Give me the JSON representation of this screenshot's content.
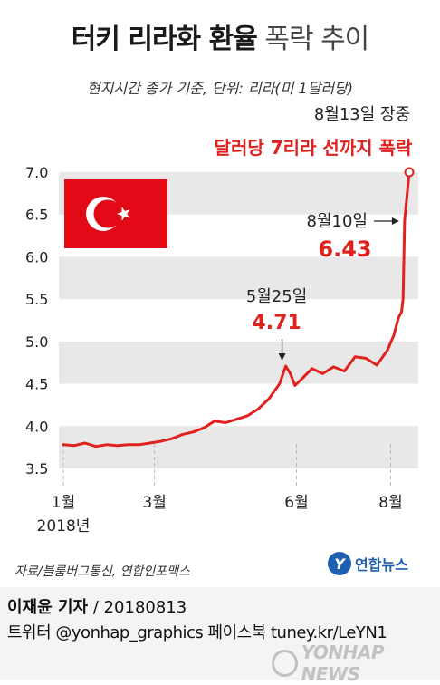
{
  "title_bold": "터키 리라화 환율",
  "title_light": "폭락 추이",
  "subtitle": "현지시간 종가 기준, 단위: 리라(미 1달러당)",
  "source": "자료/블룸버그통신, 연합인포맥스",
  "logo": {
    "mark": "Y",
    "text": "연합뉴스"
  },
  "footer": {
    "reporter": "이재윤 기자",
    "date": " / 20180813",
    "links": "트위터 @yonhap_graphics  페이스북 tuney.kr/LeYN1"
  },
  "watermark": {
    "text": "YONHAP NEWS"
  },
  "flag": {
    "name": "turkish-flag",
    "color": "#e30a17"
  },
  "colors": {
    "accent": "#e0221f",
    "line": "#e0221f",
    "band": "#e8e8e8"
  },
  "chart_data": {
    "type": "line",
    "ylim": [
      3.5,
      7.0
    ],
    "yticks": [
      "7.0",
      "6.5",
      "6.0",
      "5.5",
      "5.0",
      "4.5",
      "4.0",
      "3.5"
    ],
    "xtick_labels": [
      "1월",
      "3월",
      "6월",
      "8월"
    ],
    "year_label": "2018년",
    "x_domain": [
      "2018-01-01",
      "2018-08-13"
    ],
    "grid": "alternating horizontal bands",
    "series": [
      {
        "x": [
          "2018-01-01",
          "2018-01-08",
          "2018-01-15",
          "2018-01-22",
          "2018-01-29",
          "2018-02-05",
          "2018-02-12",
          "2018-02-19",
          "2018-02-26",
          "2018-03-05",
          "2018-03-12",
          "2018-03-19",
          "2018-03-26",
          "2018-04-02",
          "2018-04-09",
          "2018-04-16",
          "2018-04-23",
          "2018-04-30",
          "2018-05-07",
          "2018-05-14",
          "2018-05-21",
          "2018-05-25",
          "2018-05-28",
          "2018-05-31",
          "2018-06-04",
          "2018-06-11",
          "2018-06-18",
          "2018-06-25",
          "2018-07-02",
          "2018-07-09",
          "2018-07-16",
          "2018-07-23",
          "2018-07-30",
          "2018-08-03",
          "2018-08-06",
          "2018-08-08",
          "2018-08-09",
          "2018-08-10",
          "2018-08-13"
        ],
        "y": [
          3.78,
          3.77,
          3.8,
          3.76,
          3.78,
          3.77,
          3.78,
          3.78,
          3.8,
          3.82,
          3.85,
          3.9,
          3.93,
          3.98,
          4.06,
          4.04,
          4.08,
          4.12,
          4.2,
          4.32,
          4.5,
          4.71,
          4.62,
          4.48,
          4.55,
          4.68,
          4.62,
          4.7,
          4.65,
          4.82,
          4.8,
          4.72,
          4.9,
          5.07,
          5.28,
          5.35,
          5.5,
          6.43,
          7.0
        ]
      }
    ],
    "annotations": [
      {
        "x": "2018-05-25",
        "y": 4.71,
        "date_label": "5월25일",
        "value_label": "4.71"
      },
      {
        "x": "2018-08-10",
        "y": 6.43,
        "date_label": "8월10일",
        "value_label": "6.43"
      },
      {
        "x": "2018-08-13",
        "y": 7.0,
        "date_label": "8월13일 장중",
        "value_label": "달러당 7리라 선까지 폭락"
      }
    ]
  }
}
